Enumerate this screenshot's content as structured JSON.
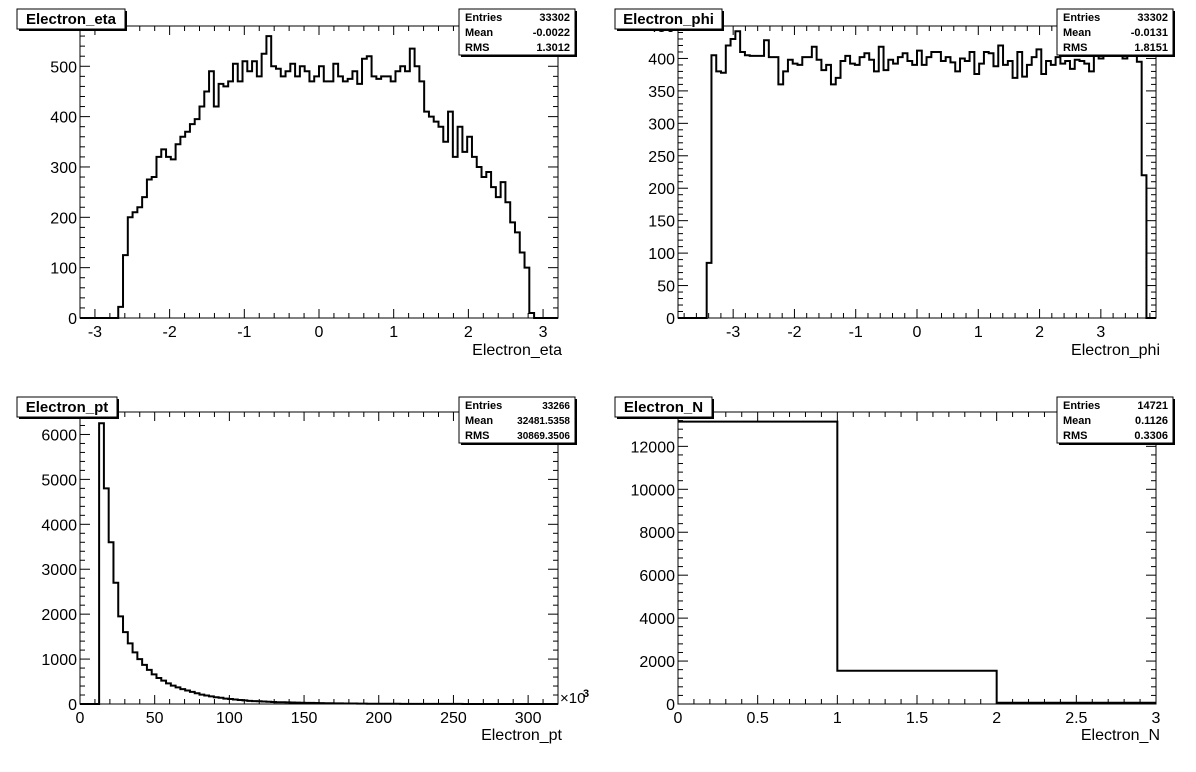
{
  "chart_data": [
    {
      "type": "histogram",
      "title": "Electron_eta",
      "xlabel": "Electron_eta",
      "xlim": [
        -3.2,
        3.2
      ],
      "ylim": [
        0,
        580
      ],
      "xticks": [
        "-3",
        "-2",
        "-1",
        "0",
        "1",
        "2",
        "3"
      ],
      "xtick_values": [
        -3,
        -2,
        -1,
        0,
        1,
        2,
        3
      ],
      "yticks": [
        "0",
        "100",
        "200",
        "300",
        "400",
        "500"
      ],
      "ytick_values": [
        0,
        100,
        200,
        300,
        400,
        500
      ],
      "stats": {
        "entries_label": "Entries",
        "entries": "33302",
        "mean_label": "Mean",
        "mean": "-0.0022",
        "rms_label": "RMS",
        "rms": "1.3012"
      },
      "bins": {
        "xmin": -3.2,
        "xmax": 3.2,
        "values": [
          0,
          0,
          0,
          0,
          0,
          0,
          0,
          0,
          22,
          125,
          200,
          210,
          220,
          240,
          275,
          280,
          320,
          335,
          320,
          315,
          345,
          360,
          370,
          385,
          395,
          420,
          450,
          490,
          420,
          465,
          460,
          470,
          505,
          470,
          510,
          490,
          510,
          480,
          525,
          560,
          500,
          495,
          480,
          490,
          505,
          480,
          500,
          490,
          470,
          480,
          500,
          470,
          470,
          505,
          480,
          470,
          475,
          490,
          465,
          515,
          520,
          480,
          475,
          480,
          480,
          470,
          490,
          500,
          490,
          535,
          500,
          470,
          410,
          400,
          390,
          380,
          350,
          410,
          320,
          380,
          330,
          360,
          320,
          300,
          280,
          290,
          260,
          240,
          270,
          230,
          190,
          170,
          130,
          100,
          10,
          0,
          0,
          0,
          0,
          0
        ]
      }
    },
    {
      "type": "histogram",
      "title": "Electron_phi",
      "xlabel": "Electron_phi",
      "xlim": [
        -3.9,
        3.9
      ],
      "ylim": [
        0,
        450
      ],
      "xticks": [
        "-3",
        "-2",
        "-1",
        "0",
        "1",
        "2",
        "3"
      ],
      "xtick_values": [
        -3,
        -2,
        -1,
        0,
        1,
        2,
        3
      ],
      "yticks": [
        "0",
        "50",
        "100",
        "150",
        "200",
        "250",
        "300",
        "350",
        "400",
        "450"
      ],
      "ytick_values": [
        0,
        50,
        100,
        150,
        200,
        250,
        300,
        350,
        400,
        450
      ],
      "stats": {
        "entries_label": "Entries",
        "entries": "33302",
        "mean_label": "Mean",
        "mean": "-0.0131",
        "rms_label": "RMS",
        "rms": "1.8151"
      },
      "bins": {
        "xmin": -3.9,
        "xmax": 3.9,
        "values": [
          0,
          0,
          0,
          0,
          0,
          0,
          85,
          405,
          380,
          378,
          420,
          430,
          442,
          410,
          405,
          404,
          404,
          404,
          428,
          402,
          402,
          360,
          380,
          398,
          392,
          390,
          402,
          402,
          418,
          398,
          382,
          390,
          360,
          370,
          396,
          404,
          392,
          390,
          402,
          408,
          398,
          380,
          418,
          382,
          398,
          392,
          402,
          408,
          396,
          390,
          412,
          390,
          402,
          410,
          410,
          396,
          402,
          394,
          380,
          400,
          396,
          410,
          376,
          392,
          410,
          408,
          388,
          420,
          390,
          396,
          370,
          410,
          372,
          390,
          402,
          414,
          376,
          396,
          390,
          402,
          392,
          396,
          384,
          398,
          396,
          392,
          380,
          418,
          400,
          412,
          406,
          425,
          418,
          400,
          425,
          405,
          395,
          220,
          0,
          0
        ]
      }
    },
    {
      "type": "histogram",
      "title": "Electron_pt",
      "xlabel": "Electron_pt",
      "xlim": [
        0,
        320
      ],
      "ylim": [
        0,
        6500
      ],
      "x_multiplier": "×10",
      "x_multiplier_exp": "3",
      "xticks": [
        "0",
        "50",
        "100",
        "150",
        "200",
        "250",
        "300"
      ],
      "xtick_values": [
        0,
        50,
        100,
        150,
        200,
        250,
        300
      ],
      "yticks": [
        "0",
        "1000",
        "2000",
        "3000",
        "4000",
        "5000",
        "6000"
      ],
      "ytick_values": [
        0,
        1000,
        2000,
        3000,
        4000,
        5000,
        6000
      ],
      "stats": {
        "entries_label": "Entries",
        "entries": "33266",
        "mean_label": "Mean",
        "mean": "32481.5358",
        "rms_label": "RMS",
        "rms": "30869.3506"
      },
      "bins": {
        "xmin": 0,
        "xmax": 320,
        "values": [
          0,
          0,
          0,
          0,
          6250,
          4800,
          3600,
          2700,
          1950,
          1600,
          1350,
          1150,
          1000,
          870,
          760,
          660,
          580,
          520,
          460,
          410,
          370,
          330,
          300,
          270,
          240,
          210,
          190,
          170,
          150,
          140,
          120,
          110,
          100,
          90,
          80,
          70,
          65,
          60,
          55,
          50,
          45,
          40,
          38,
          35,
          32,
          30,
          28,
          26,
          24,
          22,
          20,
          18,
          16,
          14,
          13,
          12,
          11,
          10,
          9,
          8,
          7,
          7,
          6,
          6,
          5,
          5,
          5,
          4,
          4,
          4,
          3,
          3,
          3,
          3,
          2,
          2,
          2,
          2,
          2,
          2,
          1,
          1,
          1,
          1,
          1,
          1,
          1,
          1,
          1,
          1,
          1,
          1,
          1,
          1,
          1,
          1,
          1,
          1,
          1,
          1
        ]
      }
    },
    {
      "type": "histogram",
      "title": "Electron_N",
      "xlabel": "Electron_N",
      "xlim": [
        0,
        3
      ],
      "ylim": [
        0,
        13600
      ],
      "xticks": [
        "0",
        "0.5",
        "1",
        "1.5",
        "2",
        "2.5",
        "3"
      ],
      "xtick_values": [
        0,
        0.5,
        1,
        1.5,
        2,
        2.5,
        3
      ],
      "yticks": [
        "0",
        "2000",
        "4000",
        "6000",
        "8000",
        "10000",
        "12000"
      ],
      "ytick_values": [
        0,
        2000,
        4000,
        6000,
        8000,
        10000,
        12000
      ],
      "stats": {
        "entries_label": "Entries",
        "entries": "14721",
        "mean_label": "Mean",
        "mean": "0.1126",
        "rms_label": "RMS",
        "rms": "0.3306"
      },
      "bins": {
        "xmin": 0,
        "xmax": 3,
        "values": [
          13150,
          1550,
          60
        ]
      }
    }
  ]
}
